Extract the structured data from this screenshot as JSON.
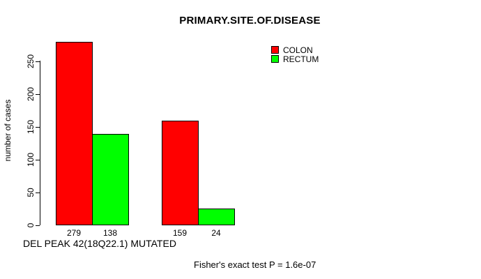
{
  "chart_data": {
    "type": "bar",
    "title": "PRIMARY.SITE.OF.DISEASE",
    "ylabel": "number of cases",
    "xlabel": "DEL PEAK 42(18Q22.1) MUTATED",
    "annotation": "Fisher's exact test P = 1.6e-07",
    "grid": false,
    "legend_position": "top-right",
    "ylim": [
      0,
      280
    ],
    "yticks": [
      0,
      50,
      100,
      150,
      200,
      250
    ],
    "groups": 2,
    "series": [
      {
        "name": "COLON",
        "color": "#FF0000",
        "values": [
          279,
          159
        ]
      },
      {
        "name": "RECTUM",
        "color": "#00FF00",
        "values": [
          138,
          24
        ]
      }
    ],
    "bar_value_labels": [
      "279",
      "138",
      "159",
      "24"
    ]
  },
  "colors": {
    "background": "#FFFFFF",
    "axis": "#000000",
    "text": "#000000",
    "colon": "#FF0000",
    "rectum": "#00FF00"
  }
}
